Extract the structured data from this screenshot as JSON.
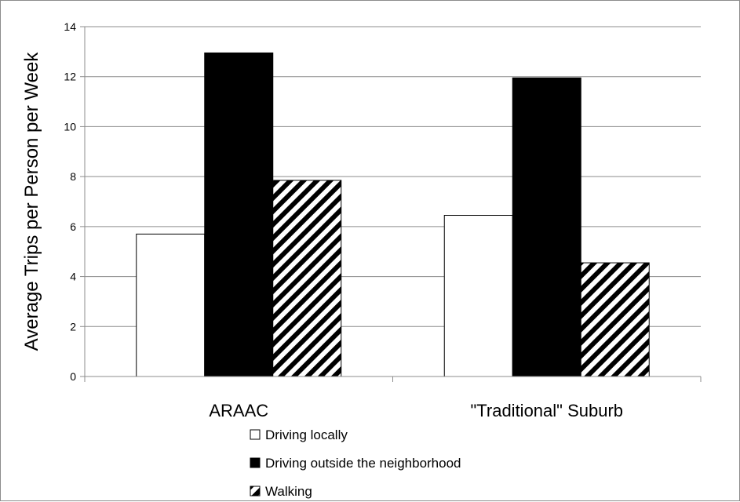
{
  "chart_data": {
    "type": "bar",
    "title": "",
    "xlabel": "",
    "ylabel": "Average Trips per Person per Week",
    "ylim": [
      0,
      14
    ],
    "yticks": [
      0,
      2,
      4,
      6,
      8,
      10,
      12,
      14
    ],
    "categories": [
      "ARAAC",
      "\"Traditional\" Suburb"
    ],
    "series": [
      {
        "name": "Driving locally",
        "values": [
          5.7,
          6.45
        ],
        "fill": "#ffffff"
      },
      {
        "name": "Driving outside the neighborhood",
        "values": [
          12.95,
          11.95
        ],
        "fill": "#000000"
      },
      {
        "name": "Walking",
        "values": [
          7.85,
          4.55
        ],
        "fill": "hatch"
      }
    ],
    "grid": true,
    "legend_position": "bottom"
  }
}
